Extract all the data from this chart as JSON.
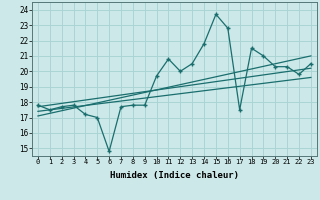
{
  "title": "",
  "xlabel": "Humidex (Indice chaleur)",
  "ylabel": "",
  "bg_color": "#cce8e8",
  "grid_color": "#aad4d4",
  "line_color": "#1a6e6e",
  "xlim": [
    -0.5,
    23.5
  ],
  "ylim": [
    14.5,
    24.5
  ],
  "xticks": [
    0,
    1,
    2,
    3,
    4,
    5,
    6,
    7,
    8,
    9,
    10,
    11,
    12,
    13,
    14,
    15,
    16,
    17,
    18,
    19,
    20,
    21,
    22,
    23
  ],
  "yticks": [
    15,
    16,
    17,
    18,
    19,
    20,
    21,
    22,
    23,
    24
  ],
  "data_x": [
    0,
    1,
    2,
    3,
    4,
    5,
    6,
    7,
    8,
    9,
    10,
    11,
    12,
    13,
    14,
    15,
    16,
    17,
    18,
    19,
    20,
    21,
    22,
    23
  ],
  "data_y": [
    17.8,
    17.5,
    17.7,
    17.8,
    17.2,
    17.0,
    14.8,
    17.7,
    17.8,
    17.8,
    19.7,
    20.8,
    20.0,
    20.5,
    21.8,
    23.7,
    22.8,
    17.5,
    21.5,
    21.0,
    20.3,
    20.3,
    19.8,
    20.5
  ],
  "trend1_x": [
    0,
    23
  ],
  "trend1_y": [
    17.7,
    20.2
  ],
  "trend2_x": [
    0,
    23
  ],
  "trend2_y": [
    17.4,
    19.6
  ],
  "trend3_x": [
    0,
    23
  ],
  "trend3_y": [
    17.1,
    21.0
  ]
}
